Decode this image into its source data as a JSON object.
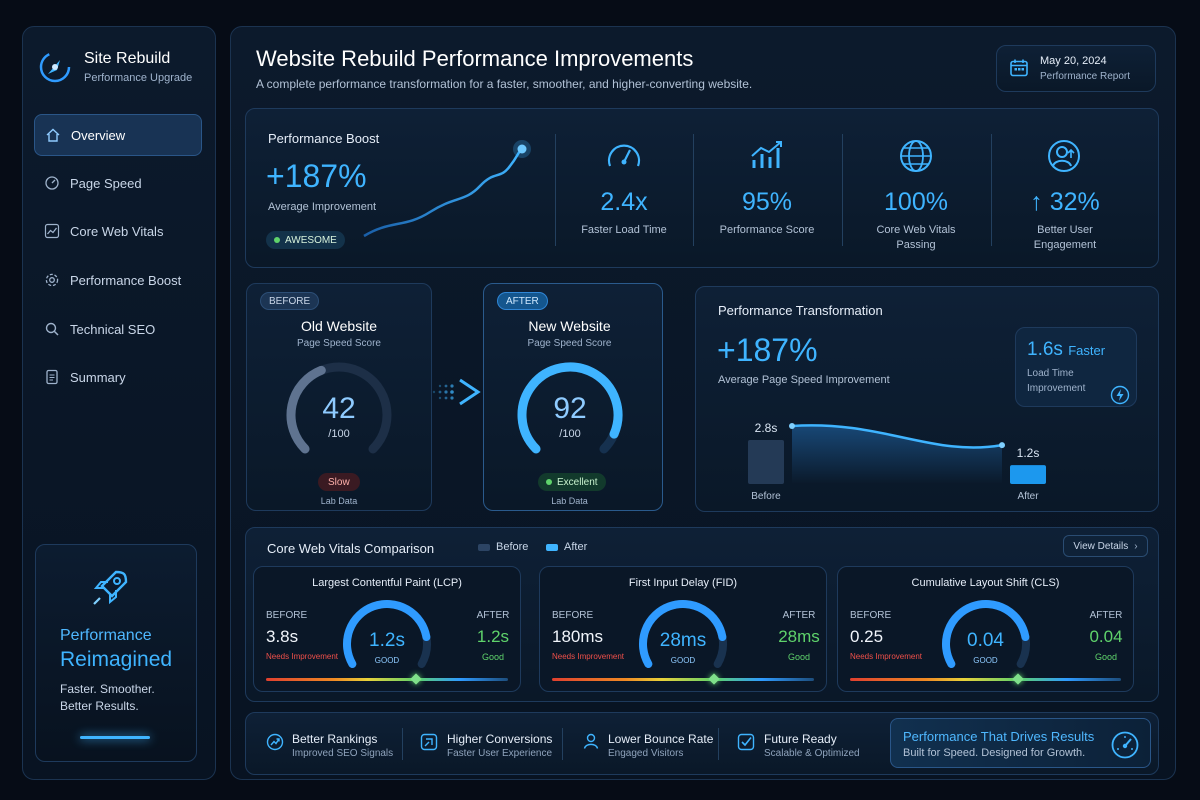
{
  "sidebar": {
    "brand_title": "Site Rebuild",
    "brand_subtitle": "Performance Upgrade",
    "items": [
      {
        "label": "Overview",
        "icon": "home-icon",
        "active": true
      },
      {
        "label": "Page Speed",
        "icon": "speedometer-icon"
      },
      {
        "label": "Core Web Vitals",
        "icon": "line-chart-icon"
      },
      {
        "label": "Performance Boost",
        "icon": "gear-icon"
      },
      {
        "label": "Technical SEO",
        "icon": "search-icon"
      },
      {
        "label": "Summary",
        "icon": "document-icon"
      }
    ],
    "promo": {
      "line1": "Performance",
      "line2": "Reimagined",
      "sub1": "Faster. Smoother.",
      "sub2": "Better Results.",
      "icon": "rocket-icon"
    }
  },
  "header": {
    "title": "Website Rebuild Performance Improvements",
    "subtitle": "A complete performance transformation for a faster, smoother, and higher-converting website.",
    "date": "May 20, 2024",
    "report_label": "Performance Report",
    "icon": "calendar-icon"
  },
  "boost": {
    "title": "Performance Boost",
    "value": "+187%",
    "label": "Average Improvement",
    "badge": "AWESOME",
    "metrics": [
      {
        "icon": "speedometer-icon",
        "value": "2.4x",
        "label": "Faster Load Time"
      },
      {
        "icon": "bar-chart-icon",
        "value": "95%",
        "label": "Performance Score"
      },
      {
        "icon": "globe-icon",
        "value": "100%",
        "label": "Core Web Vitals Passing"
      },
      {
        "icon": "user-icon",
        "value": "↑ 32%",
        "label": "Better User Engagement"
      }
    ]
  },
  "before_card": {
    "tag": "BEFORE",
    "title": "Old Website",
    "subtitle": "Page Speed Score",
    "score": "42",
    "out_of": "/100",
    "score_value": 42,
    "status": "Slow",
    "footer": "Lab Data"
  },
  "after_card": {
    "tag": "AFTER",
    "title": "New Website",
    "subtitle": "Page Speed Score",
    "score": "92",
    "out_of": "/100",
    "score_value": 92,
    "status": "Excellent",
    "footer": "Lab Data"
  },
  "transformation": {
    "title": "Performance Transformation",
    "value": "+187%",
    "label": "Average Page Speed Improvement",
    "faster_value": "1.6s",
    "faster_word": "Faster",
    "faster_label1": "Load Time",
    "faster_label2": "Improvement",
    "before_value": "2.8s",
    "before_label": "Before",
    "after_value": "1.2s",
    "after_label": "After",
    "icon": "lightning-icon"
  },
  "chart_data": {
    "type": "bar",
    "categories": [
      "Before",
      "After"
    ],
    "values": [
      2.8,
      1.2
    ],
    "title": "",
    "xlabel": "",
    "ylabel": ""
  },
  "vitals": {
    "title": "Core Web Vitals Comparison",
    "legend_before": "Before",
    "legend_after": "After",
    "view_details": "View Details",
    "before_label": "BEFORE",
    "after_label": "AFTER",
    "cards": [
      {
        "title": "Largest Contentful Paint (LCP)",
        "before": "3.8s",
        "before_status": "Needs Improvement",
        "center": "1.2s",
        "center_status": "GOOD",
        "after": "1.2s",
        "after_status": "Good"
      },
      {
        "title": "First Input Delay (FID)",
        "before": "180ms",
        "before_status": "Needs Improvement",
        "center": "28ms",
        "center_status": "GOOD",
        "after": "28ms",
        "after_status": "Good"
      },
      {
        "title": "Cumulative Layout Shift (CLS)",
        "before": "0.25",
        "before_status": "Needs Improvement",
        "center": "0.04",
        "center_status": "GOOD",
        "after": "0.04",
        "after_status": "Good"
      }
    ]
  },
  "features": [
    {
      "icon": "trend-icon",
      "title": "Better Rankings",
      "sub": "Improved SEO Signals"
    },
    {
      "icon": "cursor-icon",
      "title": "Higher Conversions",
      "sub": "Faster User Experience"
    },
    {
      "icon": "person-icon",
      "title": "Lower Bounce Rate",
      "sub": "Engaged Visitors"
    },
    {
      "icon": "checkbox-icon",
      "title": "Future Ready",
      "sub": "Scalable & Optimized"
    }
  ],
  "cta": {
    "title": "Performance That Drives Results",
    "sub": "Built for Speed. Designed for Growth.",
    "icon": "speedometer-icon"
  },
  "colors": {
    "accent": "#3fb4ff",
    "good": "#5fd36b",
    "bad": "#f0504a",
    "background": "#060c16"
  }
}
